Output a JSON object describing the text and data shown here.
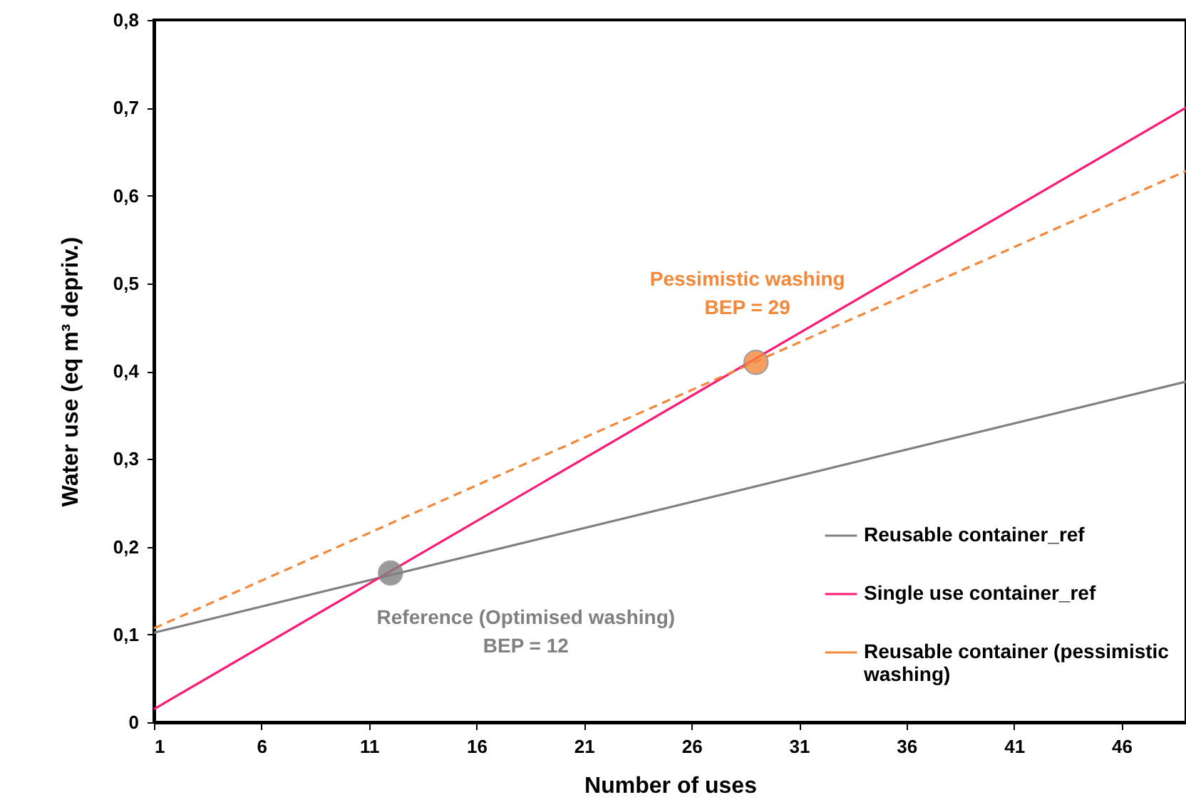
{
  "chart_data": {
    "type": "line",
    "xlabel": "Number of uses",
    "ylabel": "Water use  (eq m³ depriv.)",
    "x": [
      1,
      49
    ],
    "series": [
      {
        "name": "Reusable container_ref",
        "color": "#808080",
        "values": [
          0.102,
          0.388
        ],
        "line_style": "solid"
      },
      {
        "name": "Single use container_ref",
        "color": "#ff1a75",
        "values": [
          0.015,
          0.7
        ],
        "line_style": "solid"
      },
      {
        "name": "Reusable container (pessimistic washing)",
        "color": "#f4883a",
        "values": [
          0.107,
          0.628
        ],
        "line_style": "dashed"
      }
    ],
    "xlim": [
      1,
      49
    ],
    "xticks": [
      1,
      6,
      11,
      16,
      21,
      26,
      31,
      36,
      41,
      46
    ],
    "ylim": [
      0,
      0.8
    ],
    "yticks": [
      0,
      {
        "value": 0.1,
        "label": "0,1"
      },
      {
        "value": 0.2,
        "label": "0,2"
      },
      {
        "value": 0.3,
        "label": "0,3"
      },
      {
        "value": 0.4,
        "label": "0,4"
      },
      {
        "value": 0.5,
        "label": "0,5"
      },
      {
        "value": 0.6,
        "label": "0,6"
      },
      {
        "value": 0.7,
        "label": "0,7"
      },
      {
        "value": 0.8,
        "label": "0,8"
      }
    ],
    "annotations": [
      {
        "text": "Pessimistic washing\nBEP = 29",
        "x": 29,
        "y": 0.41
      },
      {
        "text": "Reference (Optimised washing)\nBEP = 12",
        "x": 12,
        "y": 0.17
      }
    ],
    "grid": false,
    "legend": "bottom right",
    "marker": "none"
  }
}
